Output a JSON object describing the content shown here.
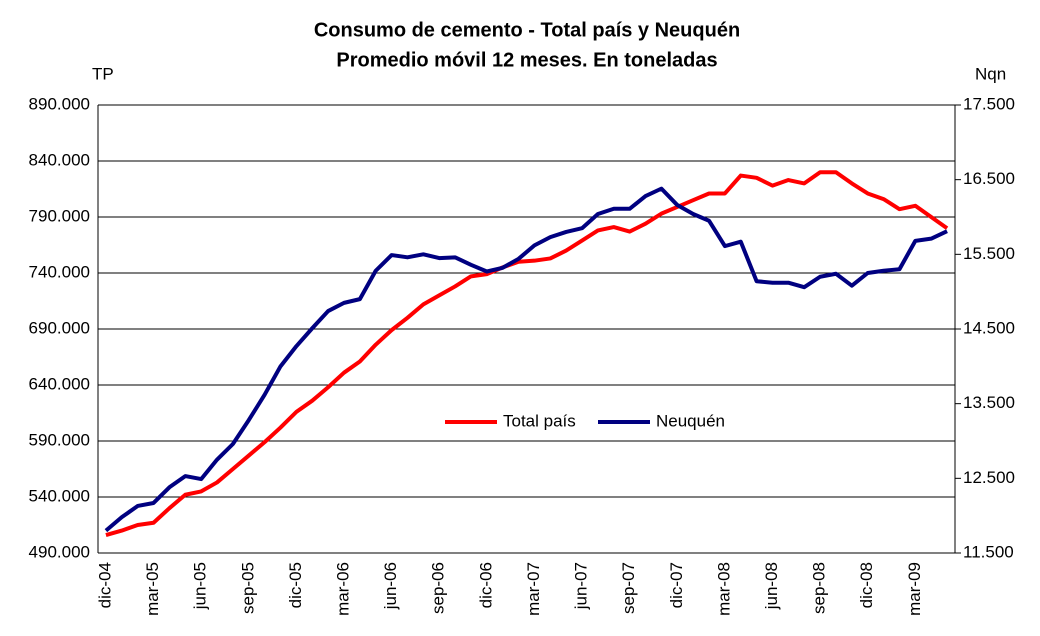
{
  "chart_data": {
    "type": "line",
    "title": "Consumo de cemento - Total país y Neuquén",
    "subtitle": "Promedio móvil 12 meses. En toneladas",
    "y_label": "TP",
    "y2_label": "Nqn",
    "categories": [
      "dic-04",
      null,
      null,
      "mar-05",
      null,
      null,
      "jun-05",
      null,
      null,
      "sep-05",
      null,
      null,
      "dic-05",
      null,
      null,
      "mar-06",
      null,
      null,
      "jun-06",
      null,
      null,
      "sep-06",
      null,
      null,
      "dic-06",
      null,
      null,
      "mar-07",
      null,
      null,
      "jun-07",
      null,
      null,
      "sep-07",
      null,
      null,
      "dic-07",
      null,
      null,
      "mar-08",
      null,
      null,
      "jun-08",
      null,
      null,
      "sep-08",
      null,
      null,
      "dic-08",
      null,
      null,
      "mar-09",
      null,
      null
    ],
    "series": [
      {
        "name": "Total país",
        "color": "#ff0000",
        "values": [
          506000,
          510000,
          515000,
          517000,
          530000,
          542000,
          545000,
          553000,
          565000,
          577000,
          589000,
          602000,
          616000,
          626000,
          638000,
          651000,
          661000,
          676000,
          689000,
          700000,
          712000,
          720000,
          728000,
          737000,
          739000,
          745000,
          750000,
          751000,
          753000,
          760000,
          769000,
          778000,
          781000,
          777000,
          784000,
          793000,
          799000,
          805000,
          811000,
          811000,
          827000,
          825000,
          818000,
          823000,
          820000,
          830000,
          830000,
          820000,
          811000,
          806000,
          797000,
          800000,
          790000,
          780000
        ]
      },
      {
        "name": "Neuquén",
        "color": "#000080",
        "axis": "y2",
        "values": [
          11800,
          11980,
          12130,
          12170,
          12380,
          12530,
          12490,
          12750,
          12960,
          13280,
          13620,
          14000,
          14270,
          14510,
          14740,
          14850,
          14900,
          15280,
          15490,
          15460,
          15500,
          15450,
          15460,
          15360,
          15270,
          15320,
          15440,
          15620,
          15730,
          15800,
          15850,
          16040,
          16110,
          16110,
          16280,
          16380,
          16160,
          16040,
          15950,
          15610,
          15670,
          15140,
          15120,
          15120,
          15060,
          15200,
          15240,
          15080,
          15250,
          15280,
          15300,
          15680,
          15710,
          15810
        ]
      }
    ],
    "ylim": [
      490000,
      890000
    ],
    "yticks": [
      {
        "value": 490000,
        "label": "490.000"
      },
      {
        "value": 540000,
        "label": "540.000"
      },
      {
        "value": 590000,
        "label": "590.000"
      },
      {
        "value": 640000,
        "label": "640.000"
      },
      {
        "value": 690000,
        "label": "690.000"
      },
      {
        "value": 740000,
        "label": "740.000"
      },
      {
        "value": 790000,
        "label": "790.000"
      },
      {
        "value": 840000,
        "label": "840.000"
      },
      {
        "value": 890000,
        "label": "890.000"
      }
    ],
    "y2lim": [
      11500,
      17500
    ],
    "y2ticks": [
      {
        "value": 11500,
        "label": "11.500"
      },
      {
        "value": 12500,
        "label": "12.500"
      },
      {
        "value": 13500,
        "label": "13.500"
      },
      {
        "value": 14500,
        "label": "14.500"
      },
      {
        "value": 15500,
        "label": "15.500"
      },
      {
        "value": 16500,
        "label": "16.500"
      },
      {
        "value": 17500,
        "label": "17.500"
      }
    ],
    "grid": true,
    "legend": "center"
  }
}
